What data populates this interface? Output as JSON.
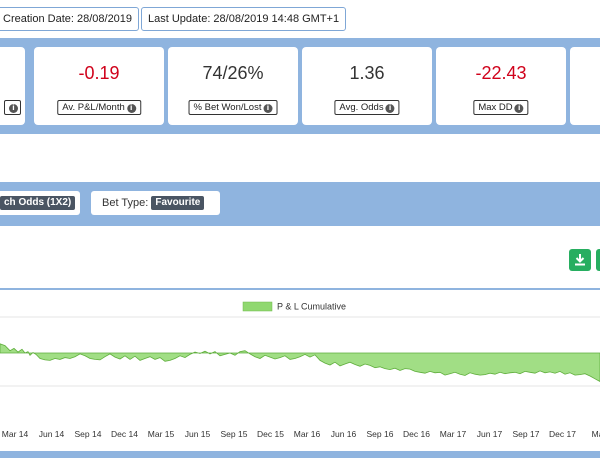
{
  "header": {
    "creation_date": "Creation Date: 28/08/2019",
    "last_update": "Last Update: 28/08/2019 14:48 GMT+1"
  },
  "stats": [
    {
      "value": "-0.19",
      "label": "Av. P&L/Month",
      "color": "#d0021b"
    },
    {
      "value": "74/26%",
      "label": "% Bet Won/Lost",
      "color": "#333333"
    },
    {
      "value": "1.36",
      "label": "Avg. Odds",
      "color": "#333333"
    },
    {
      "value": "-22.43",
      "label": "Max DD",
      "color": "#d0021b"
    }
  ],
  "filters": {
    "market_chip": "ch Odds (1X2)",
    "bet_type_label": "Bet Type:",
    "bet_type_chip": "Favourite"
  },
  "toolbar": {
    "download_icon": "download-icon"
  },
  "chart_data": {
    "type": "area",
    "legend": "P & L Cumulative",
    "legend_color": "#90d870",
    "legend_position": "top-center",
    "x_ticks": [
      "Mar 14",
      "Jun 14",
      "Sep 14",
      "Dec 14",
      "Mar 15",
      "Jun 15",
      "Sep 15",
      "Dec 15",
      "Mar 16",
      "Jun 16",
      "Sep 16",
      "Dec 16",
      "Mar 17",
      "Jun 17",
      "Sep 17",
      "Dec 17",
      "Mar"
    ],
    "grid": true,
    "series": [
      {
        "name": "P & L Cumulative",
        "x": [
          0,
          5,
          10,
          14,
          18,
          22,
          25,
          28,
          30,
          33,
          36,
          40,
          45,
          50,
          55,
          60,
          65,
          70,
          75,
          80,
          85,
          90,
          95,
          100,
          105,
          110,
          115,
          120,
          125,
          130,
          135,
          140,
          145,
          150,
          155,
          160,
          165,
          170,
          175,
          180,
          185,
          190,
          195,
          200,
          205,
          210,
          215,
          220,
          225,
          230,
          235,
          240,
          245,
          250,
          255,
          260,
          265,
          270,
          275,
          280,
          285,
          290,
          295,
          300,
          305,
          310,
          315,
          320,
          325,
          330,
          335,
          340,
          345,
          350,
          355,
          360,
          365,
          370,
          375,
          380,
          385,
          390,
          395,
          400,
          405,
          410,
          415,
          420,
          425,
          430,
          435,
          440,
          445,
          450,
          455,
          460,
          465,
          470,
          475,
          480,
          485,
          490,
          495,
          500,
          505,
          510,
          515,
          520,
          525,
          530,
          535,
          540,
          545,
          550,
          555,
          560,
          565,
          570,
          575,
          580,
          585,
          590,
          595,
          600
        ],
        "values": [
          2.0,
          1.6,
          0.5,
          1.0,
          0.2,
          0.8,
          0.0,
          0.3,
          -0.5,
          0.1,
          -0.3,
          -1.2,
          -1.5,
          -1.6,
          -1.2,
          -1.4,
          -1.0,
          -1.2,
          -0.8,
          -0.2,
          -0.6,
          -1.2,
          -1.4,
          -1.5,
          -0.8,
          -0.2,
          -0.9,
          -1.3,
          -0.6,
          -1.4,
          -0.7,
          -1.6,
          -1.2,
          -0.8,
          -1.4,
          -1.0,
          -1.8,
          -1.6,
          -1.2,
          -0.6,
          -1.0,
          -0.3,
          0.2,
          -0.1,
          0.4,
          -0.2,
          0.3,
          -0.6,
          -0.3,
          0.0,
          -0.5,
          0.3,
          0.5,
          -0.2,
          -0.8,
          -1.2,
          -0.5,
          -0.9,
          -1.3,
          -1.0,
          -0.6,
          -1.4,
          -1.2,
          -0.8,
          -0.3,
          -0.9,
          -0.4,
          -1.6,
          -2.2,
          -2.6,
          -2.0,
          -2.8,
          -2.4,
          -2.0,
          -2.5,
          -2.9,
          -2.4,
          -2.7,
          -3.2,
          -3.0,
          -3.4,
          -3.6,
          -3.3,
          -3.8,
          -3.4,
          -3.5,
          -4.0,
          -4.2,
          -4.4,
          -4.0,
          -4.3,
          -4.2,
          -4.8,
          -4.5,
          -4.2,
          -4.6,
          -4.9,
          -4.3,
          -4.6,
          -4.8,
          -4.7,
          -4.4,
          -4.6,
          -4.2,
          -4.5,
          -4.3,
          -4.2,
          -4.5,
          -4.0,
          -4.2,
          -4.4,
          -3.9,
          -4.3,
          -4.1,
          -4.4,
          -4.0,
          -4.6,
          -4.3,
          -4.8,
          -4.7,
          -4.5,
          -5.0,
          -5.6,
          -6.2
        ],
        "color": "#90d870"
      }
    ]
  }
}
